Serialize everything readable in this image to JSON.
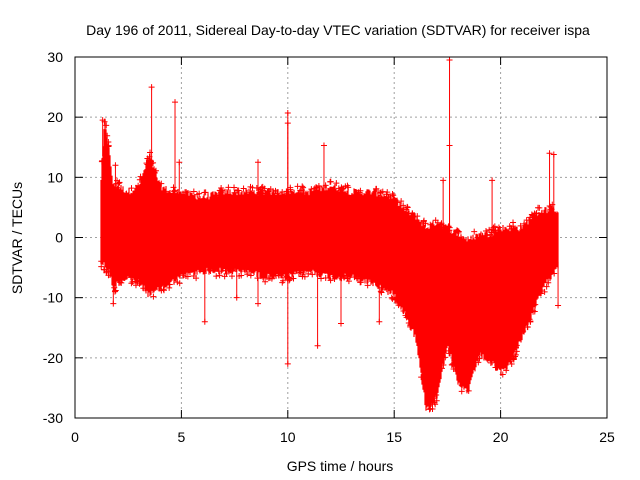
{
  "chart_data": {
    "type": "scatter",
    "title": "Day 196 of 2011, Sidereal Day-to-day VTEC variation (SDTVAR) for receiver ispa",
    "xlabel": "GPS time / hours",
    "ylabel": "SDTVAR / TECUs",
    "xlim": [
      0,
      25
    ],
    "ylim": [
      -30,
      30
    ],
    "xticks": [
      "0",
      "5",
      "10",
      "15",
      "20",
      "25"
    ],
    "yticks": [
      "-30",
      "-20",
      "-10",
      "0",
      "10",
      "20",
      "30"
    ],
    "grid": true,
    "marker": "+",
    "series_color": "#ff0000",
    "envelope": [
      {
        "x": 1.2,
        "lo": -3.5,
        "hi": 8
      },
      {
        "x": 1.4,
        "lo": -4,
        "hi": 19
      },
      {
        "x": 1.6,
        "lo": -5,
        "hi": 14
      },
      {
        "x": 1.8,
        "lo": -8,
        "hi": 8
      },
      {
        "x": 2.0,
        "lo": -7,
        "hi": 8
      },
      {
        "x": 2.5,
        "lo": -6,
        "hi": 7
      },
      {
        "x": 3.0,
        "lo": -7,
        "hi": 8
      },
      {
        "x": 3.5,
        "lo": -9,
        "hi": 13
      },
      {
        "x": 4.0,
        "lo": -8,
        "hi": 8
      },
      {
        "x": 4.5,
        "lo": -7,
        "hi": 7
      },
      {
        "x": 5.0,
        "lo": -6,
        "hi": 7
      },
      {
        "x": 6.0,
        "lo": -5,
        "hi": 6
      },
      {
        "x": 7.0,
        "lo": -5,
        "hi": 7
      },
      {
        "x": 8.0,
        "lo": -5,
        "hi": 7
      },
      {
        "x": 9.0,
        "lo": -6,
        "hi": 7
      },
      {
        "x": 10.0,
        "lo": -6,
        "hi": 7
      },
      {
        "x": 11.0,
        "lo": -5,
        "hi": 7
      },
      {
        "x": 12.0,
        "lo": -6,
        "hi": 8
      },
      {
        "x": 13.0,
        "lo": -6,
        "hi": 7
      },
      {
        "x": 14.0,
        "lo": -7,
        "hi": 7
      },
      {
        "x": 15.0,
        "lo": -9,
        "hi": 6
      },
      {
        "x": 15.5,
        "lo": -12,
        "hi": 4
      },
      {
        "x": 16.0,
        "lo": -16,
        "hi": 3
      },
      {
        "x": 16.5,
        "lo": -28,
        "hi": 1
      },
      {
        "x": 17.0,
        "lo": -26,
        "hi": 2
      },
      {
        "x": 17.5,
        "lo": -17,
        "hi": 1
      },
      {
        "x": 18.0,
        "lo": -24,
        "hi": 0
      },
      {
        "x": 18.5,
        "lo": -25,
        "hi": -1
      },
      {
        "x": 19.0,
        "lo": -19,
        "hi": 0
      },
      {
        "x": 19.5,
        "lo": -20,
        "hi": 0
      },
      {
        "x": 20.0,
        "lo": -22,
        "hi": 1
      },
      {
        "x": 20.5,
        "lo": -20,
        "hi": 1
      },
      {
        "x": 21.0,
        "lo": -16,
        "hi": 1
      },
      {
        "x": 21.5,
        "lo": -12,
        "hi": 3
      },
      {
        "x": 22.0,
        "lo": -8,
        "hi": 4
      },
      {
        "x": 22.5,
        "lo": -5,
        "hi": 4
      },
      {
        "x": 22.7,
        "lo": -4,
        "hi": 4
      }
    ],
    "outliers": [
      {
        "x": 17.6,
        "y": 29.5
      },
      {
        "x": 3.6,
        "y": 25
      },
      {
        "x": 4.7,
        "y": 22.5
      },
      {
        "x": 10.0,
        "y": 20.7
      },
      {
        "x": 10.0,
        "y": 19
      },
      {
        "x": 1.3,
        "y": 19.5
      },
      {
        "x": 17.6,
        "y": 15.3
      },
      {
        "x": 11.7,
        "y": 15.3
      },
      {
        "x": 22.3,
        "y": 14
      },
      {
        "x": 22.5,
        "y": 13.8
      },
      {
        "x": 8.6,
        "y": 12.5
      },
      {
        "x": 1.9,
        "y": 12
      },
      {
        "x": 4.9,
        "y": 12.5
      },
      {
        "x": 17.3,
        "y": 9.5
      },
      {
        "x": 19.6,
        "y": 9.5
      },
      {
        "x": 10.0,
        "y": -21
      },
      {
        "x": 12.5,
        "y": -14.3
      },
      {
        "x": 6.1,
        "y": -14
      },
      {
        "x": 11.4,
        "y": -18
      },
      {
        "x": 14.3,
        "y": -14
      },
      {
        "x": 1.8,
        "y": -11
      },
      {
        "x": 22.7,
        "y": -11.3
      },
      {
        "x": 8.6,
        "y": -11
      },
      {
        "x": 7.6,
        "y": -10
      },
      {
        "x": 18.5,
        "y": -25.5
      },
      {
        "x": 16.8,
        "y": -28.5
      }
    ]
  }
}
